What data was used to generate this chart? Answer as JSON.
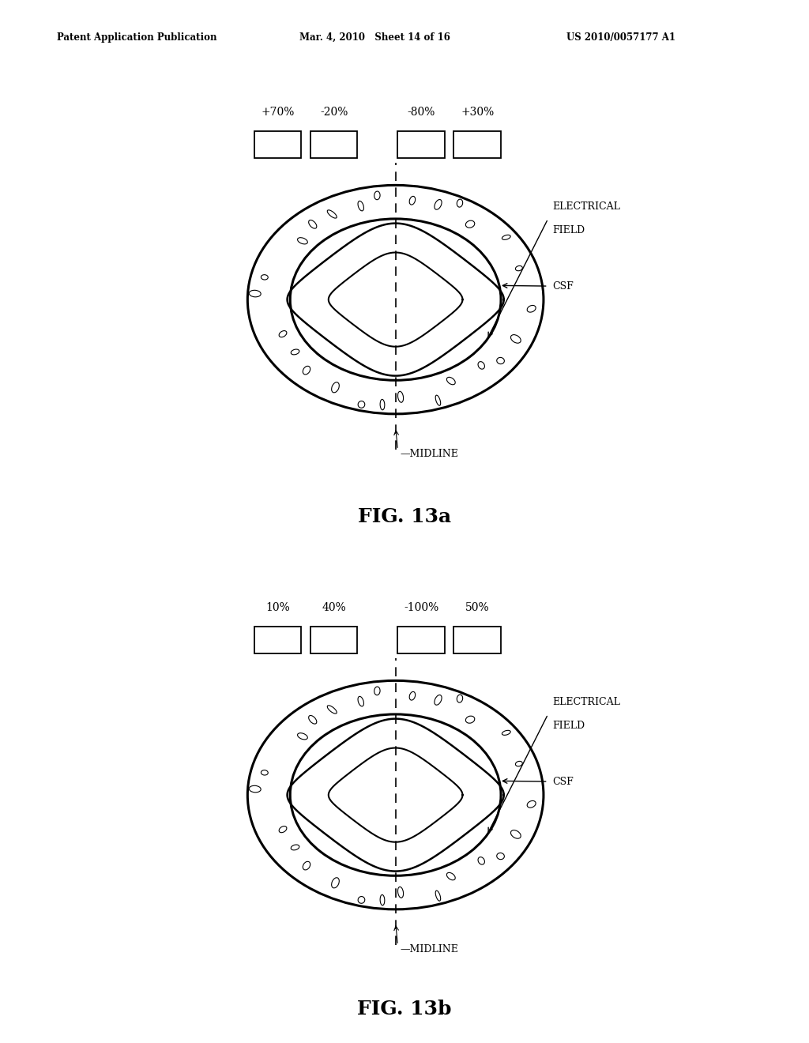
{
  "header_left": "Patent Application Publication",
  "header_mid": "Mar. 4, 2010   Sheet 14 of 16",
  "header_right": "US 2010/0057177 A1",
  "fig1": {
    "title": "FIG. 13a",
    "labels": [
      "+70%",
      "-20%",
      "-80%",
      "+30%"
    ],
    "label_ef": "ELECTRICAL\nFIELD",
    "label_csf": "CSF",
    "label_midline": "MIDLINE"
  },
  "fig2": {
    "title": "FIG. 13b",
    "labels": [
      "10%",
      "40%",
      "-100%",
      "50%"
    ],
    "label_ef": "ELECTRICAL\nFIELD",
    "label_csf": "CSF",
    "label_midline": "MIDLINE"
  },
  "bg_color": "#ffffff",
  "line_color": "#000000",
  "text_color": "#000000"
}
